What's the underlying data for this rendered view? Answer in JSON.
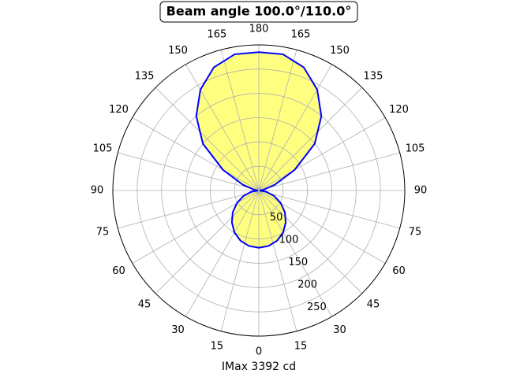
{
  "chart_data": {
    "type": "polar",
    "title": "Beam angle 100.0°/110.0°",
    "x_label": "IMax 3392 cd",
    "theta": [
      0,
      10,
      20,
      30,
      40,
      50,
      60,
      70,
      80,
      90,
      100,
      110,
      120,
      130,
      140,
      150,
      160,
      170,
      180,
      190,
      200,
      210,
      220,
      230,
      240,
      250,
      260,
      270,
      280,
      290,
      300,
      310,
      320,
      330,
      340,
      350
    ],
    "values": [
      118,
      116,
      110,
      100,
      86,
      70,
      52,
      34,
      16,
      2,
      10,
      35,
      85,
      150,
      200,
      240,
      270,
      285,
      285,
      285,
      270,
      240,
      200,
      150,
      85,
      35,
      10,
      2,
      16,
      34,
      52,
      70,
      86,
      100,
      110,
      116
    ],
    "line_color": "#0000ff",
    "fill_color": "#ffff00",
    "rlim": [
      0,
      300
    ],
    "rticks": [
      50,
      100,
      150,
      200,
      250
    ],
    "thetaticks": [
      0,
      15,
      30,
      45,
      60,
      75,
      90,
      105,
      120,
      135,
      150,
      165,
      180,
      {
        "value": 195,
        "label": "165"
      },
      {
        "value": 210,
        "label": "150"
      },
      {
        "value": 225,
        "label": "135"
      },
      {
        "value": 240,
        "label": "120"
      },
      {
        "value": 255,
        "label": "105"
      },
      {
        "value": 270,
        "label": "90"
      },
      {
        "value": 285,
        "label": "75"
      },
      {
        "value": 300,
        "label": "60"
      },
      {
        "value": 315,
        "label": "45"
      },
      {
        "value": 330,
        "label": "30"
      },
      {
        "value": 345,
        "label": "15"
      }
    ],
    "grid": true
  }
}
